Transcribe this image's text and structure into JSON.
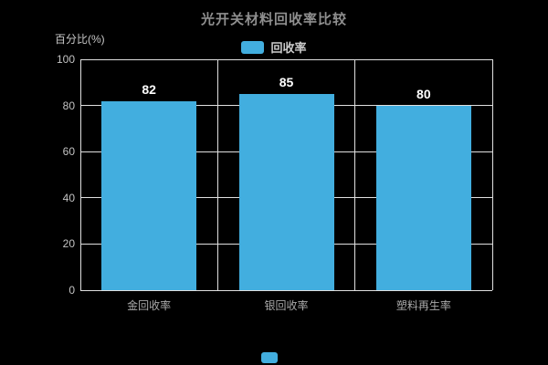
{
  "title": "光开关材料回收率比较",
  "legend": {
    "label": "回收率",
    "marker_color": "#42AEDF"
  },
  "y_axis_name": "百分比(%)",
  "colors": {
    "background": "#000000",
    "bar": "#42AEDF",
    "gridline": "#e0e0e0",
    "title_text": "#8f8f8f",
    "tick_text": "#c3c3c3",
    "category_text": "#a9a9a9"
  },
  "chart_data": {
    "type": "bar",
    "title": "光开关材料回收率比较",
    "categories": [
      "金回收率",
      "银回收率",
      "塑料再生率"
    ],
    "series": [
      {
        "name": "回收率",
        "values": [
          82,
          85,
          80
        ]
      }
    ],
    "value_labels": [
      "82",
      "85",
      "80"
    ],
    "xlabel": "",
    "ylabel": "百分比(%)",
    "ylim": [
      0,
      100
    ],
    "yticks": [
      0,
      20,
      40,
      60,
      80,
      100
    ],
    "grid": true,
    "legend_position": "top-center",
    "bar_color": "#42AEDF",
    "background": "#000000"
  }
}
